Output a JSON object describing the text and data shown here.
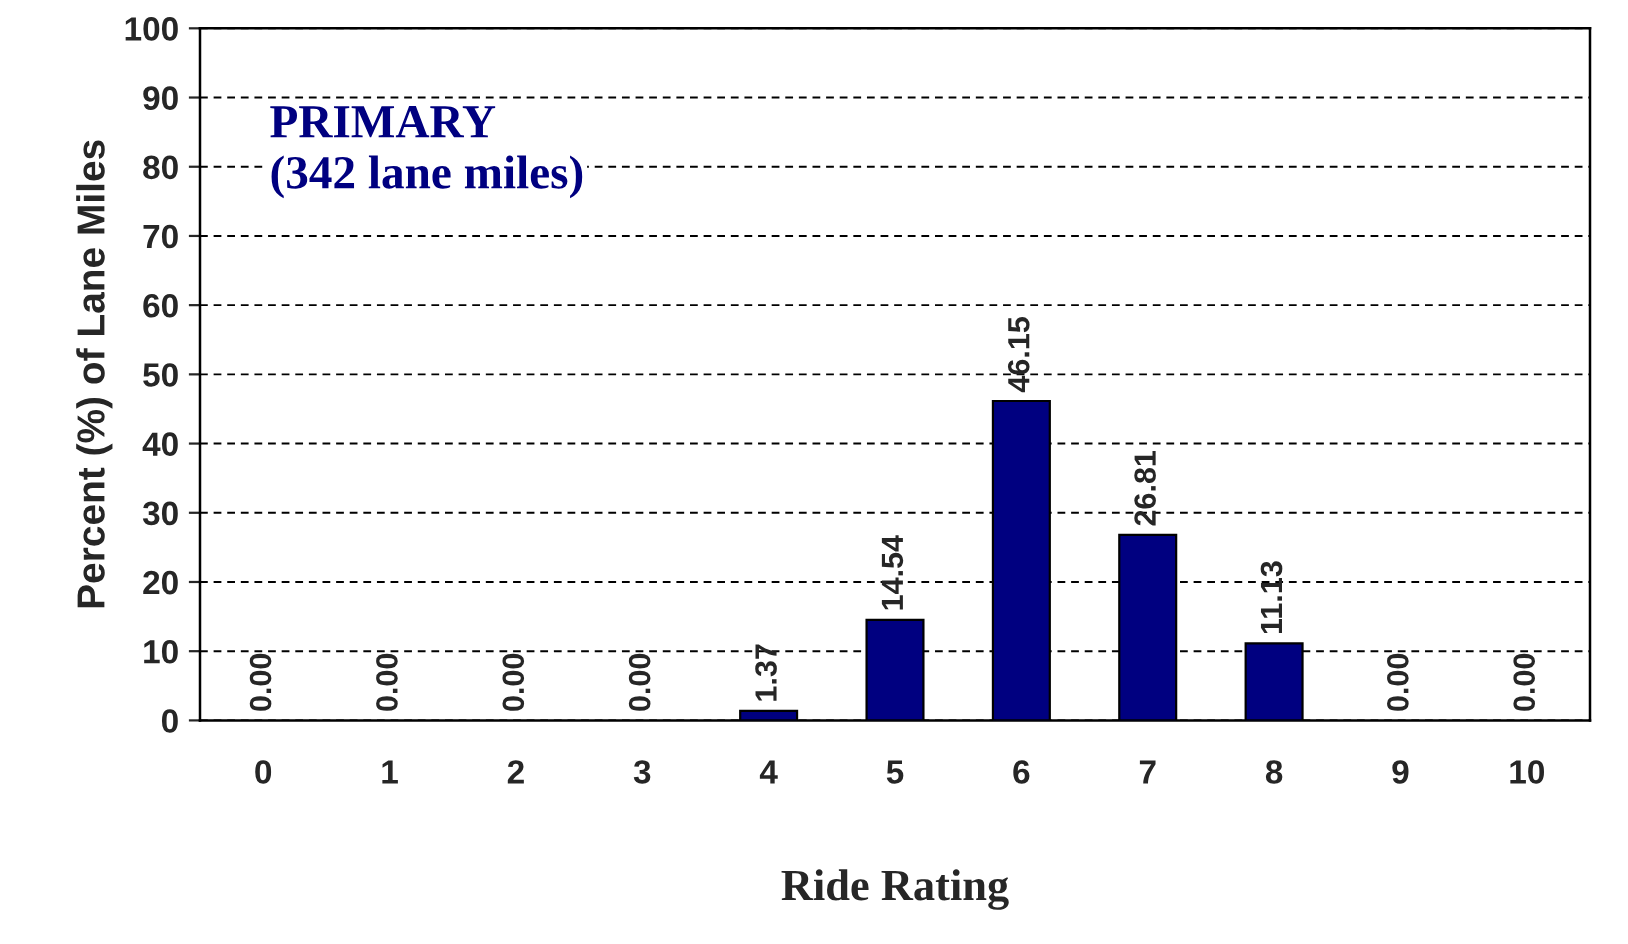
{
  "chart_data": {
    "type": "bar",
    "xlabel": "Ride Rating",
    "ylabel": "Percent (%) of Lane Miles",
    "categories": [
      "0",
      "1",
      "2",
      "3",
      "4",
      "5",
      "6",
      "7",
      "8",
      "9",
      "10"
    ],
    "series": [
      {
        "color": "#000080",
        "values": [
          0,
          0,
          0,
          0,
          1.37,
          14.54,
          46.15,
          26.81,
          11.13,
          0,
          0
        ],
        "value_labels": [
          "0.00",
          "0.00",
          "0.00",
          "0.00",
          "1.37",
          "14.54",
          "46.15",
          "26.81",
          "11.13",
          "0.00",
          "0.00"
        ]
      }
    ],
    "ylim": [
      0,
      100
    ],
    "yticks": [
      0,
      10,
      20,
      30,
      40,
      50,
      60,
      70,
      80,
      90,
      100
    ],
    "grid": "y",
    "legend": false,
    "annotations": [
      "PRIMARY\n(342 lane miles)"
    ]
  }
}
